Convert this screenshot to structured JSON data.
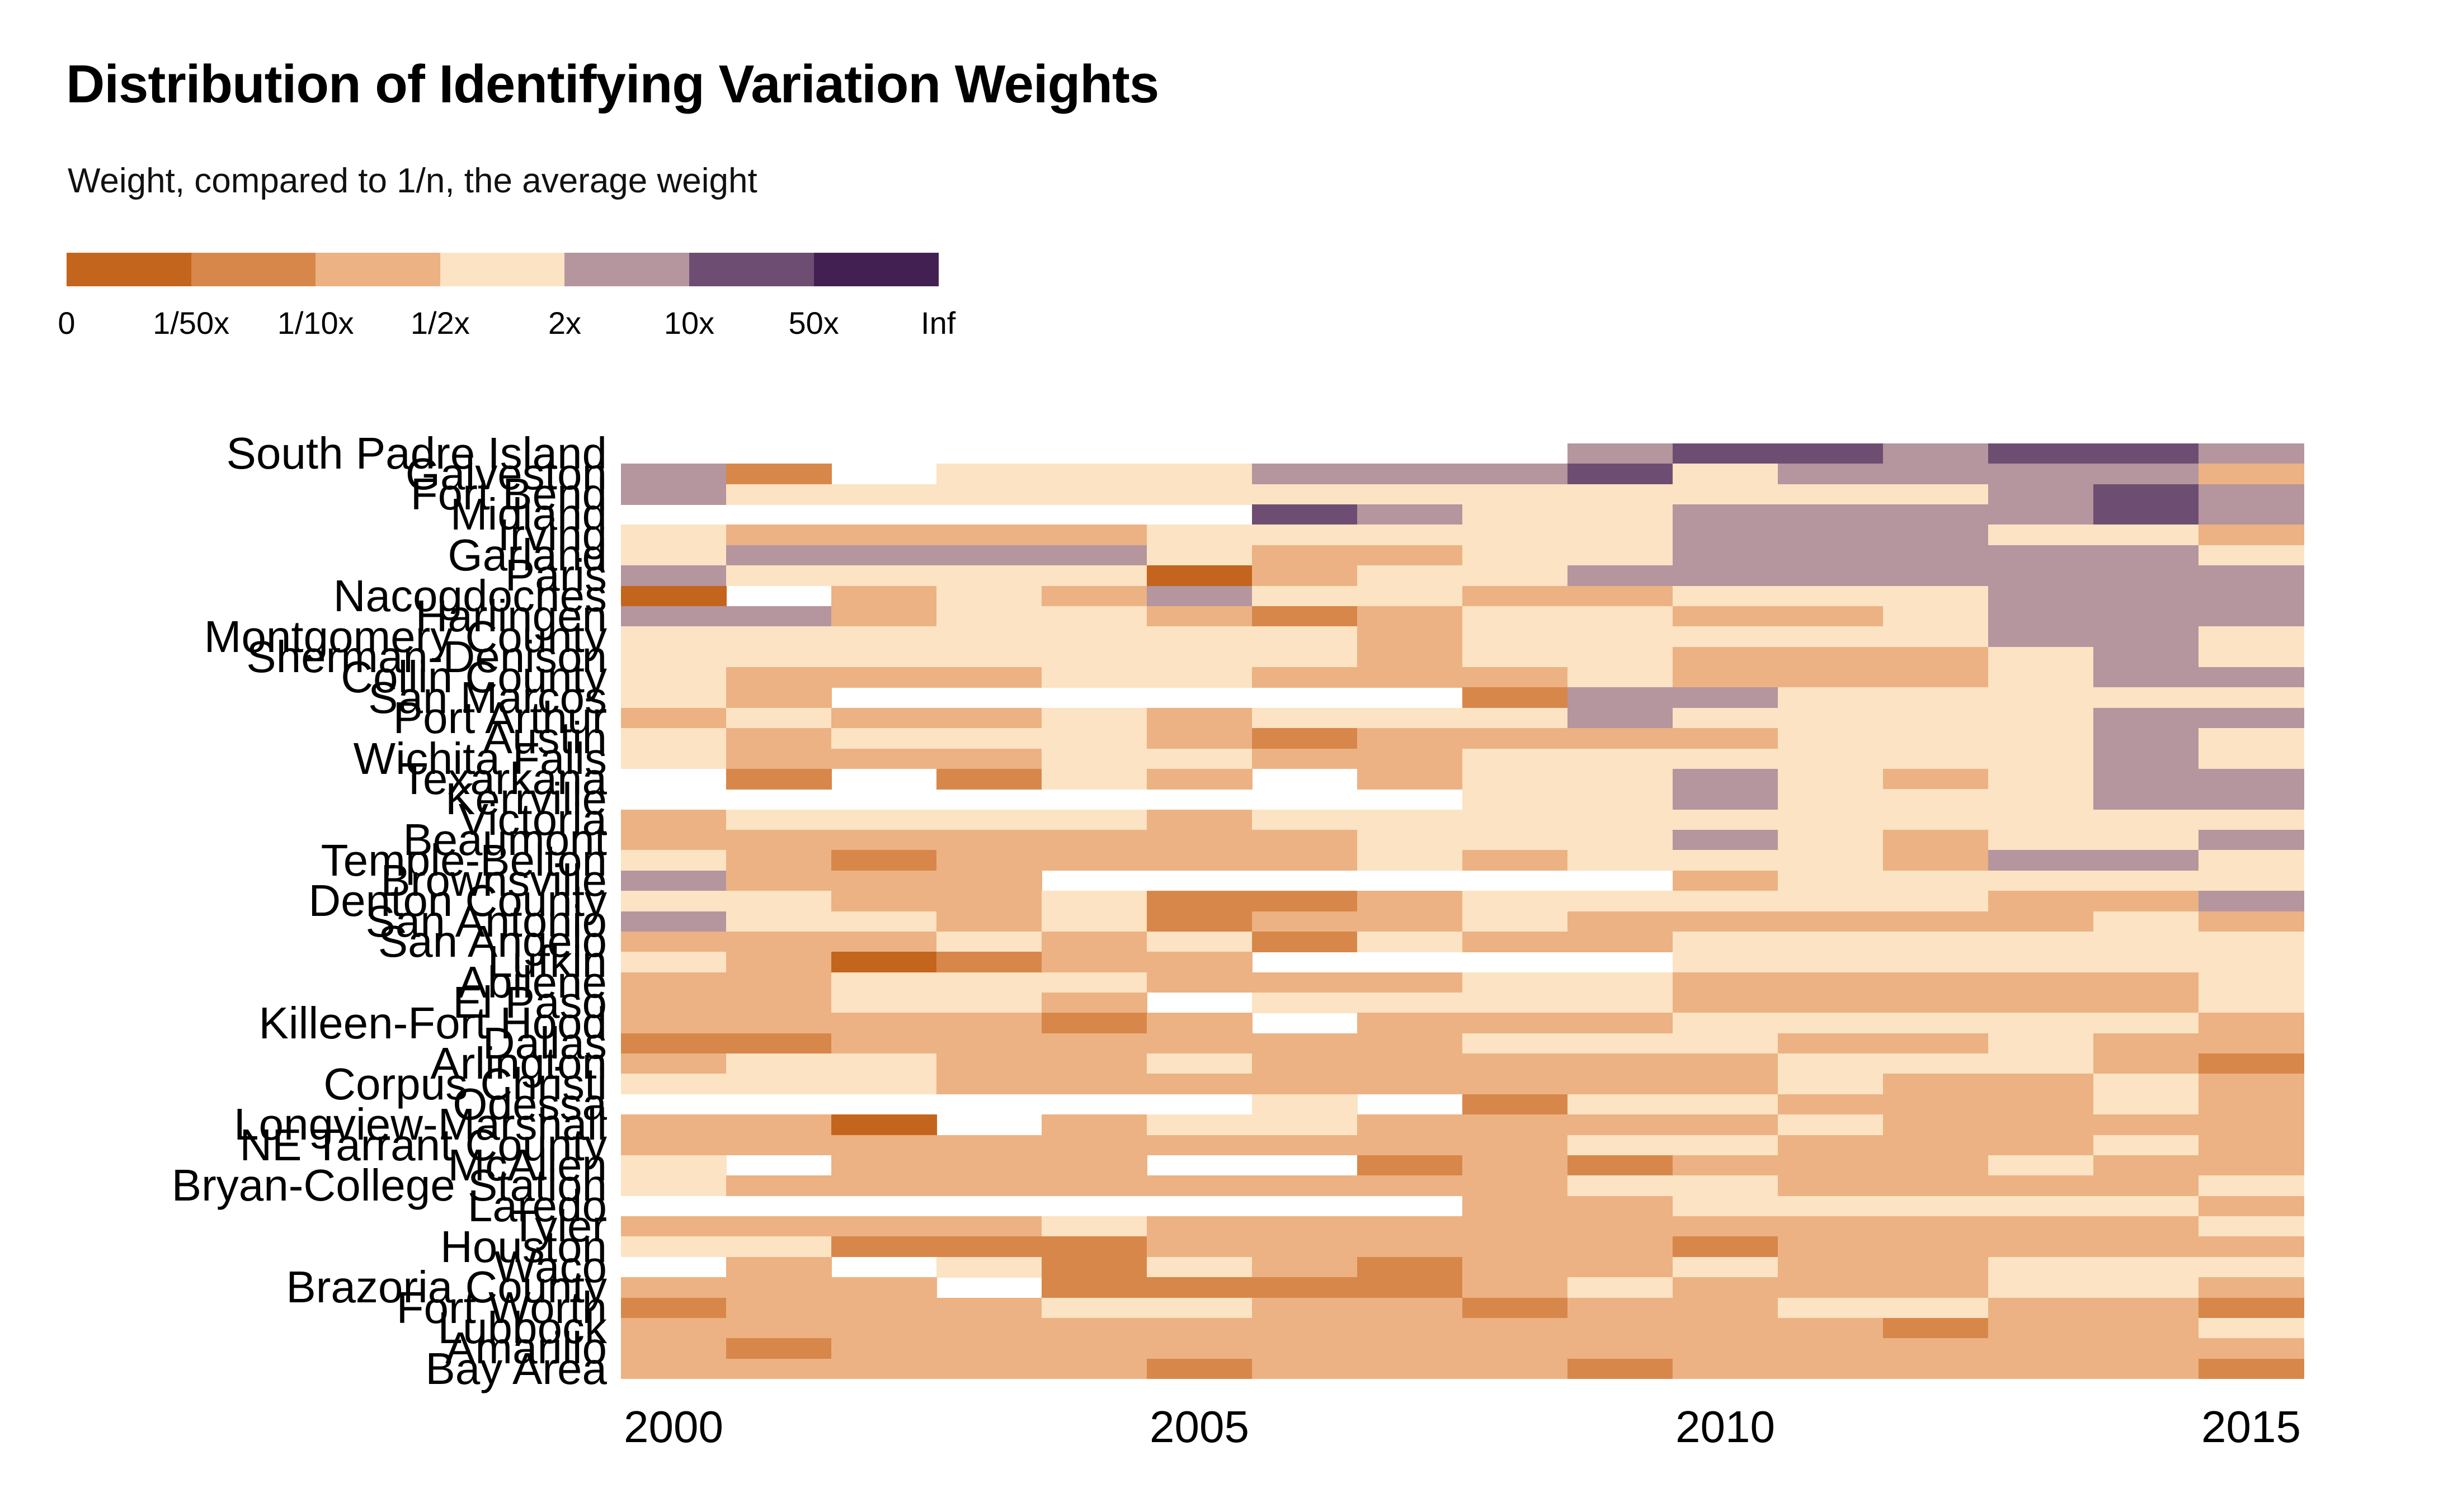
{
  "chart": {
    "title": "Distribution of Identifying Variation Weights",
    "subtitle": "Weight, compared to 1/n, the average weight"
  },
  "chart_data": {
    "type": "heatmap",
    "title": "Distribution of Identifying Variation Weights",
    "subtitle": "Weight, compared to 1/n, the average weight",
    "x": [
      2000,
      2001,
      2002,
      2003,
      2004,
      2005,
      2006,
      2007,
      2008,
      2009,
      2010,
      2011,
      2012,
      2013,
      2014,
      2015
    ],
    "x_tick_labels": [
      "2000",
      "2005",
      "2010",
      "2015"
    ],
    "x_tick_years": [
      2000,
      2005,
      2010,
      2015
    ],
    "categories": [
      "South Padre Island",
      "Galveston",
      "Fort Bend",
      "Midland",
      "Irving",
      "Garland",
      "Paris",
      "Nacogdoches",
      "Harlingen",
      "Montgomery County",
      "Sherman-Denison",
      "Collin County",
      "San Marcos",
      "Port Arthur",
      "Austin",
      "Wichita Falls",
      "Texarkana",
      "Kerrville",
      "Victoria",
      "Beaumont",
      "Temple-Belton",
      "Brownsville",
      "Denton County",
      "San Antonio",
      "San Angelo",
      "Lufkin",
      "Abilene",
      "El Paso",
      "Killeen-Fort Hood",
      "Dallas",
      "Arlington",
      "Corpus Christi",
      "Odessa",
      "Longview-Marshall",
      "NE Tarrant County",
      "McAllen",
      "Bryan-College Station",
      "Laredo",
      "Tyler",
      "Houston",
      "Waco",
      "Brazoria County",
      "Fort Worth",
      "Lubbock",
      "Amarillo",
      "Bay Area"
    ],
    "value_bins": {
      "w": "missing",
      "1": "0 to 1/50x",
      "2": "1/50x to 1/10x",
      "3": "1/10x to 1/2x",
      "4": "1/2x to 2x",
      "5": "2x to 10x",
      "6": "10x to 50x",
      "7": "50x to Inf"
    },
    "palette": {
      "w": "#ffffff",
      "1": "#c4651d",
      "2": "#d8874a",
      "3": "#ecb283",
      "4": "#fbe3c4",
      "5": "#b5959e",
      "6": "#6d4e72",
      "7": "#432052"
    },
    "rows": [
      "wwwwwwwww5665665",
      "52w4445556455553",
      "5444444444444565",
      "wwwwww6544555565",
      "4333344444555443",
      "4555543344555554",
      "5444413445555555",
      "1w34354433444555",
      "5534432344334555",
      "4444444344444554",
      "4444444344333454",
      "4333443334333455",
      "43wwwwww25544444",
      "3433434445444455",
      "4344432333344454",
      "4333443344444454",
      "w2w243w344543455",
      "wwwwwwww44544455",
      "3444434444444444",
      "3333333444543445",
      "4323333434443554",
      "5333wwwwww344444",
      "4433422344444335",
      "5443423343333343",
      "3334342433444444",
      "431233wwww444444",
      "3344433344333334",
      "33443w4444333334",
      "333323w333444443",
      "2233333344433433",
      "3443343333344432",
      "4443333333343343",
      "wwwwww4w24433343",
      "331w344333343333",
      "3333333334433343",
      "4w333ww232333433",
      "4333333334433334",
      "wwwwwwww33444443",
      "3333433333333334",
      "4422233333233333",
      "w3w4243233433444",
      "333w222234333443",
      "2333443323344332",
      "3333333333332334",
      "3233333333333333",
      "3333323332333332"
    ],
    "legend": {
      "position": "top-left",
      "boundary_labels": [
        "0",
        "1/50x",
        "1/10x",
        "1/2x",
        "2x",
        "10x",
        "50x",
        "Inf"
      ],
      "swatch_colors": [
        "#c4651d",
        "#d8874a",
        "#ecb283",
        "#fbe3c4",
        "#b5959e",
        "#6d4e72",
        "#432052"
      ]
    },
    "grid": "off",
    "ylim_rows": 46,
    "xlim_cols": 16
  }
}
